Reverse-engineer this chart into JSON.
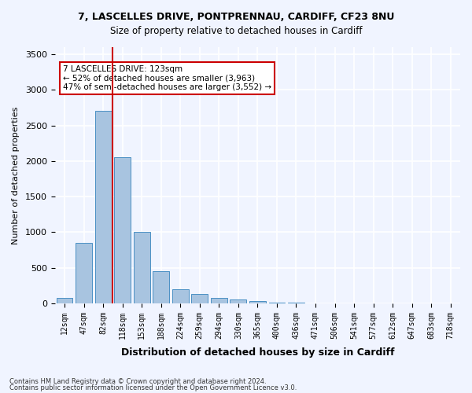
{
  "title1": "7, LASCELLES DRIVE, PONTPRENNAU, CARDIFF, CF23 8NU",
  "title2": "Size of property relative to detached houses in Cardiff",
  "xlabel": "Distribution of detached houses by size in Cardiff",
  "ylabel": "Number of detached properties",
  "annotation_line1": "7 LASCELLES DRIVE: 123sqm",
  "annotation_line2": "← 52% of detached houses are smaller (3,963)",
  "annotation_line3": "47% of semi-detached houses are larger (3,552) →",
  "footer1": "Contains HM Land Registry data © Crown copyright and database right 2024.",
  "footer2": "Contains public sector information licensed under the Open Government Licence v3.0.",
  "categories": [
    "12sqm",
    "47sqm",
    "82sqm",
    "118sqm",
    "153sqm",
    "188sqm",
    "224sqm",
    "259sqm",
    "294sqm",
    "330sqm",
    "365sqm",
    "400sqm",
    "436sqm",
    "471sqm",
    "506sqm",
    "541sqm",
    "577sqm",
    "612sqm",
    "647sqm",
    "683sqm",
    "718sqm"
  ],
  "values": [
    75,
    850,
    2700,
    2050,
    1000,
    450,
    200,
    130,
    75,
    55,
    30,
    10,
    5,
    3,
    2,
    1,
    1,
    0,
    0,
    0,
    0
  ],
  "bar_color": "#a8c4e0",
  "bar_edge_color": "#4a90c4",
  "vline_x": 3,
  "vline_color": "#cc0000",
  "ylim": [
    0,
    3600
  ],
  "yticks": [
    0,
    500,
    1000,
    1500,
    2000,
    2500,
    3000,
    3500
  ],
  "annotation_box_color": "#ffffff",
  "annotation_box_edge": "#cc0000",
  "bg_color": "#f0f4ff",
  "grid_color": "#ffffff"
}
